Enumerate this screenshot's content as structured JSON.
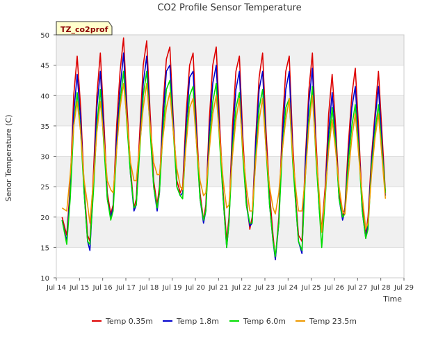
{
  "chart_data": {
    "type": "line",
    "title": "CO2 Profile Sensor Temperature",
    "xlabel": "Time",
    "ylabel": "Senor Temperature (C)",
    "annotation": "TZ_co2prof",
    "xlim": [
      14,
      29
    ],
    "ylim": [
      10,
      50
    ],
    "x_ticks": [
      14,
      15,
      16,
      17,
      18,
      19,
      20,
      21,
      22,
      23,
      24,
      25,
      26,
      27,
      28,
      29
    ],
    "x_tick_labels": [
      "Jul 14",
      "Jul 15",
      "Jul 16",
      "Jul 17",
      "Jul 18",
      "Jul 19",
      "Jul 20",
      "Jul 21",
      "Jul 22",
      "Jul 23",
      "Jul 24",
      "Jul 25",
      "Jul 26",
      "Jul 27",
      "Jul 28",
      "Jul 29"
    ],
    "y_ticks": [
      10,
      15,
      20,
      25,
      30,
      35,
      40,
      45,
      50
    ],
    "y_tick_labels": [
      "10",
      "15",
      "20",
      "25",
      "30",
      "35",
      "40",
      "45",
      "50"
    ],
    "grid": true,
    "band_color": "#f0f0f0",
    "legend_position": "bottom",
    "series": [
      {
        "name": "Temp 0.35m",
        "color": "#dd0000",
        "x": [
          14.25,
          14.45,
          14.6,
          14.75,
          14.9,
          15.05,
          15.2,
          15.35,
          15.45,
          15.6,
          15.75,
          15.9,
          16.05,
          16.2,
          16.35,
          16.45,
          16.6,
          16.75,
          16.9,
          17.05,
          17.2,
          17.35,
          17.45,
          17.6,
          17.75,
          17.9,
          18.05,
          18.2,
          18.35,
          18.45,
          18.6,
          18.75,
          18.9,
          19.05,
          19.2,
          19.35,
          19.45,
          19.6,
          19.75,
          19.9,
          20.05,
          20.2,
          20.35,
          20.45,
          20.6,
          20.75,
          20.9,
          21.05,
          21.2,
          21.35,
          21.45,
          21.6,
          21.75,
          21.9,
          22.05,
          22.2,
          22.35,
          22.45,
          22.6,
          22.75,
          22.9,
          23.05,
          23.2,
          23.35,
          23.45,
          23.6,
          23.75,
          23.9,
          24.05,
          24.2,
          24.35,
          24.45,
          24.6,
          24.75,
          24.9,
          25.05,
          25.2,
          25.35,
          25.45,
          25.6,
          25.75,
          25.9,
          26.05,
          26.2,
          26.35,
          26.45,
          26.6,
          26.75,
          26.9,
          27.05,
          27.2,
          27.35,
          27.45,
          27.6,
          27.75,
          27.9,
          28.05,
          28.2
        ],
        "y": [
          20,
          17,
          25,
          40,
          46.5,
          38,
          25,
          17,
          16,
          27,
          40,
          47,
          36,
          24,
          20.5,
          22,
          35,
          44,
          49.5,
          38,
          28,
          21.5,
          23,
          34,
          45,
          49,
          37,
          26,
          22,
          25,
          38,
          46,
          48,
          36,
          26,
          24,
          25,
          37,
          45,
          47,
          35,
          24,
          19.5,
          22,
          36,
          45,
          48,
          35,
          24,
          16,
          20,
          35,
          44,
          46.5,
          33,
          23,
          18,
          20,
          33,
          43,
          47,
          34,
          24,
          17,
          13,
          20,
          35,
          44,
          46.5,
          32,
          22,
          17,
          16,
          30,
          41,
          47,
          33,
          22,
          18,
          25,
          37,
          43.5,
          35,
          24,
          20,
          21.5,
          32,
          40,
          44.5,
          34,
          22,
          17,
          20,
          30,
          37,
          44,
          34,
          24
        ]
      },
      {
        "name": "Temp 1.8m",
        "color": "#0000cc",
        "x": [
          14.25,
          14.45,
          14.6,
          14.75,
          14.9,
          15.05,
          15.2,
          15.35,
          15.45,
          15.6,
          15.75,
          15.9,
          16.05,
          16.2,
          16.35,
          16.45,
          16.6,
          16.75,
          16.9,
          17.05,
          17.2,
          17.35,
          17.45,
          17.6,
          17.75,
          17.9,
          18.05,
          18.2,
          18.35,
          18.45,
          18.6,
          18.75,
          18.9,
          19.05,
          19.2,
          19.35,
          19.45,
          19.6,
          19.75,
          19.9,
          20.05,
          20.2,
          20.35,
          20.45,
          20.6,
          20.75,
          20.9,
          21.05,
          21.2,
          21.35,
          21.45,
          21.6,
          21.75,
          21.9,
          22.05,
          22.2,
          22.35,
          22.45,
          22.6,
          22.75,
          22.9,
          23.05,
          23.2,
          23.35,
          23.45,
          23.6,
          23.75,
          23.9,
          24.05,
          24.2,
          24.35,
          24.45,
          24.6,
          24.75,
          24.9,
          25.05,
          25.2,
          25.35,
          25.45,
          25.6,
          25.75,
          25.9,
          26.05,
          26.2,
          26.35,
          26.45,
          26.6,
          26.75,
          26.9,
          27.05,
          27.2,
          27.35,
          27.45,
          27.6,
          27.75,
          27.9,
          28.05,
          28.2
        ],
        "y": [
          19.5,
          16,
          24,
          37,
          43.5,
          36,
          24,
          16,
          14.5,
          25,
          38,
          44,
          34,
          23,
          20,
          21.5,
          33,
          41,
          47,
          36,
          27,
          21,
          22,
          32,
          42,
          46.5,
          35,
          25,
          21,
          24,
          36,
          44,
          45,
          35,
          25,
          23.5,
          24,
          35,
          43,
          44,
          33,
          23,
          19,
          21,
          34,
          42,
          45,
          33,
          23,
          15,
          19,
          33,
          41,
          44,
          31,
          22,
          18.5,
          19,
          32,
          41,
          44,
          32,
          22,
          16,
          13,
          19,
          33,
          41,
          44,
          30,
          21,
          16,
          14,
          29,
          39,
          44.5,
          31,
          21,
          17.5,
          24,
          34,
          40.5,
          33,
          23,
          19.5,
          21,
          30,
          38,
          41.5,
          32,
          21,
          16.5,
          19,
          29,
          36,
          41.5,
          32,
          23.5
        ]
      },
      {
        "name": "Temp 6.0m",
        "color": "#00dd00",
        "x": [
          14.25,
          14.45,
          14.6,
          14.75,
          14.9,
          15.05,
          15.2,
          15.35,
          15.45,
          15.6,
          15.75,
          15.9,
          16.05,
          16.2,
          16.35,
          16.45,
          16.6,
          16.75,
          16.9,
          17.05,
          17.2,
          17.35,
          17.45,
          17.6,
          17.75,
          17.9,
          18.05,
          18.2,
          18.35,
          18.45,
          18.6,
          18.75,
          18.9,
          19.05,
          19.2,
          19.35,
          19.45,
          19.6,
          19.75,
          19.9,
          20.05,
          20.2,
          20.35,
          20.45,
          20.6,
          20.75,
          20.9,
          21.05,
          21.2,
          21.35,
          21.45,
          21.6,
          21.75,
          21.9,
          22.05,
          22.2,
          22.35,
          22.45,
          22.6,
          22.75,
          22.9,
          23.05,
          23.2,
          23.35,
          23.45,
          23.6,
          23.75,
          23.9,
          24.05,
          24.2,
          24.35,
          24.45,
          24.6,
          24.75,
          24.9,
          25.05,
          25.2,
          25.35,
          25.45,
          25.6,
          25.75,
          25.9,
          26.05,
          26.2,
          26.35,
          26.45,
          26.6,
          26.75,
          26.9,
          27.05,
          27.2,
          27.35,
          27.45,
          27.6,
          27.75,
          27.9,
          28.05,
          28.2
        ],
        "y": [
          19.5,
          15.5,
          23,
          35,
          40.5,
          34,
          24,
          16,
          15.5,
          24,
          35,
          41,
          32,
          23,
          19.5,
          21,
          31,
          39,
          44,
          35,
          27,
          21.5,
          22,
          31,
          40,
          44,
          34,
          25,
          21.5,
          24,
          34,
          41,
          42.5,
          34,
          25,
          23.5,
          23,
          33,
          40,
          41.5,
          32,
          23,
          19.5,
          21,
          32,
          39,
          42,
          32,
          23,
          15,
          19,
          31,
          38,
          40.5,
          30,
          22,
          19,
          19,
          30,
          38,
          41,
          31,
          22,
          16,
          13.5,
          19,
          31,
          38,
          39.5,
          29,
          21,
          16,
          14.5,
          27,
          36,
          41.5,
          30,
          21,
          15,
          23,
          32,
          38,
          32,
          23,
          20,
          20.5,
          29,
          35,
          38.5,
          31,
          21,
          16.5,
          18,
          28,
          34,
          38.5,
          31,
          24
        ]
      },
      {
        "name": "Temp 23.5m",
        "color": "#ee9900",
        "x": [
          14.25,
          14.45,
          14.6,
          14.75,
          14.9,
          15.05,
          15.2,
          15.35,
          15.45,
          15.6,
          15.75,
          15.9,
          16.05,
          16.2,
          16.35,
          16.45,
          16.6,
          16.75,
          16.9,
          17.05,
          17.2,
          17.35,
          17.45,
          17.6,
          17.75,
          17.9,
          18.05,
          18.2,
          18.35,
          18.45,
          18.6,
          18.75,
          18.9,
          19.05,
          19.2,
          19.35,
          19.45,
          19.6,
          19.75,
          19.9,
          20.05,
          20.2,
          20.35,
          20.45,
          20.6,
          20.75,
          20.9,
          21.05,
          21.2,
          21.35,
          21.45,
          21.6,
          21.75,
          21.9,
          22.05,
          22.2,
          22.35,
          22.45,
          22.6,
          22.75,
          22.9,
          23.05,
          23.2,
          23.35,
          23.45,
          23.6,
          23.75,
          23.9,
          24.05,
          24.2,
          24.35,
          24.45,
          24.6,
          24.75,
          24.9,
          25.05,
          25.2,
          25.35,
          25.45,
          25.6,
          25.75,
          25.9,
          26.05,
          26.2,
          26.35,
          26.45,
          26.6,
          26.75,
          26.9,
          27.05,
          27.2,
          27.35,
          27.45,
          27.6,
          27.75,
          27.9,
          28.05,
          28.2
        ],
        "y": [
          21.5,
          21,
          27,
          35,
          39,
          34,
          26,
          22,
          19,
          26,
          34,
          39,
          33,
          26,
          24.5,
          24,
          31,
          38,
          42,
          36,
          29,
          26,
          26,
          32,
          38,
          42,
          35,
          29,
          27,
          27,
          33,
          38,
          40.5,
          34,
          28,
          25,
          24.5,
          32,
          38,
          39.5,
          32,
          26,
          23.5,
          24,
          31,
          37,
          40,
          33,
          26,
          21.5,
          22,
          30,
          36,
          39.5,
          31,
          25,
          21,
          21,
          29,
          36,
          39.5,
          31,
          25,
          21.5,
          20.5,
          24,
          31,
          36,
          39.5,
          30,
          24,
          21,
          21,
          27,
          35,
          40,
          31,
          23.5,
          17.5,
          24,
          31,
          36,
          31,
          25,
          21,
          20.5,
          27,
          33,
          37,
          30,
          23.5,
          18,
          19,
          27,
          33,
          37,
          30,
          23
        ]
      }
    ]
  }
}
